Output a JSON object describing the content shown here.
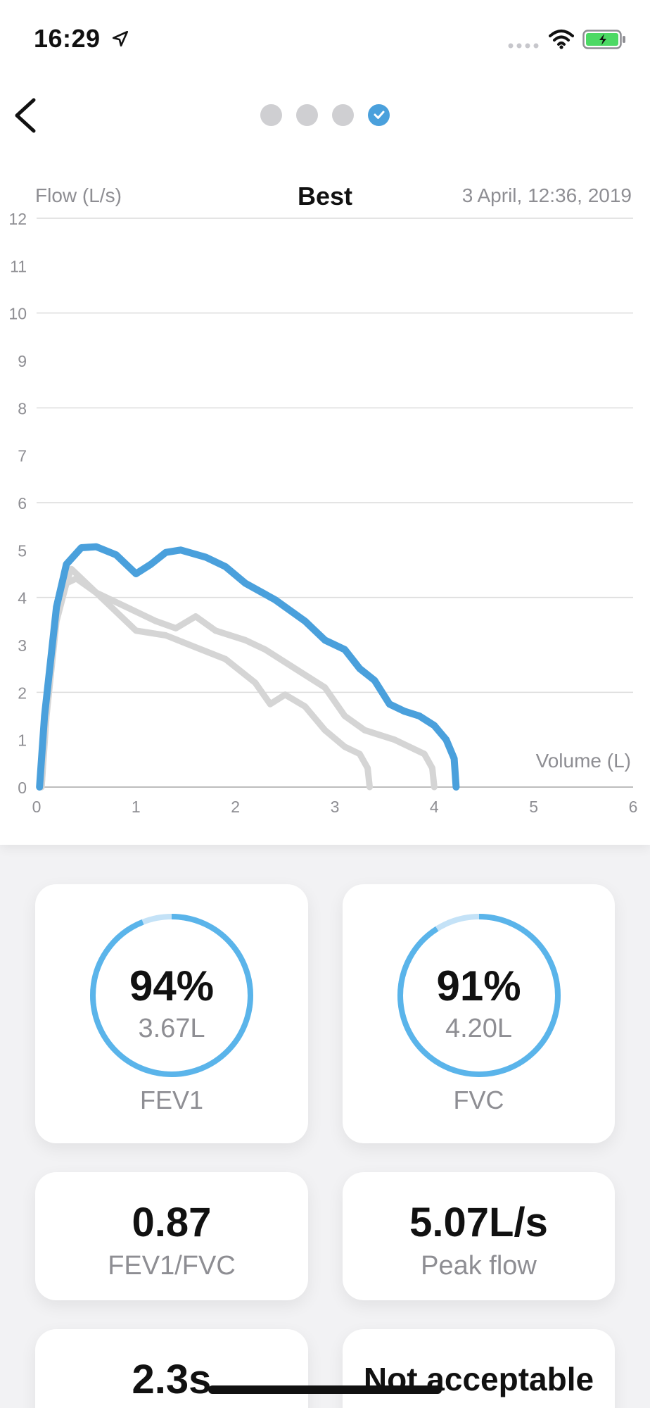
{
  "status_bar": {
    "time": "16:29",
    "icons": [
      "location-arrow-icon",
      "cellular-signal-icon",
      "wifi-icon",
      "battery-charging-icon"
    ],
    "battery_color": "#4cd964"
  },
  "nav": {
    "back_icon": "chevron-left-icon",
    "steps": [
      {
        "state": "pending"
      },
      {
        "state": "pending"
      },
      {
        "state": "pending"
      },
      {
        "state": "done",
        "icon": "checkmark-icon"
      }
    ]
  },
  "chart_header": {
    "y_label": "Flow (L/s)",
    "title": "Best",
    "date": "3 April, 12:36, 2019"
  },
  "chart_data": {
    "type": "line",
    "title": "Best",
    "xlabel": "Volume (L)",
    "ylabel": "Flow (L/s)",
    "xlim": [
      0,
      6
    ],
    "ylim": [
      0,
      12
    ],
    "x_ticks": [
      "0",
      "1",
      "2",
      "3",
      "4",
      "5",
      "6"
    ],
    "y_ticks": [
      "0",
      "1",
      "2",
      "3",
      "4",
      "5",
      "6",
      "7",
      "8",
      "9",
      "10",
      "11",
      "12"
    ],
    "grid": true,
    "series": [
      {
        "role": "other-attempt",
        "color": "#d5d5d5",
        "points": [
          [
            0.05,
            0
          ],
          [
            0.1,
            1.5
          ],
          [
            0.2,
            3.5
          ],
          [
            0.3,
            4.3
          ],
          [
            0.4,
            4.4
          ],
          [
            0.6,
            4.1
          ],
          [
            0.9,
            3.8
          ],
          [
            1.2,
            3.5
          ],
          [
            1.4,
            3.35
          ],
          [
            1.6,
            3.6
          ],
          [
            1.8,
            3.3
          ],
          [
            2.1,
            3.1
          ],
          [
            2.3,
            2.9
          ],
          [
            2.6,
            2.5
          ],
          [
            2.9,
            2.1
          ],
          [
            3.1,
            1.5
          ],
          [
            3.3,
            1.2
          ],
          [
            3.6,
            1.0
          ],
          [
            3.9,
            0.7
          ],
          [
            3.98,
            0.4
          ],
          [
            4.0,
            0
          ]
        ]
      },
      {
        "role": "other-attempt",
        "color": "#d5d5d5",
        "points": [
          [
            0.05,
            0
          ],
          [
            0.1,
            1.8
          ],
          [
            0.2,
            3.8
          ],
          [
            0.35,
            4.6
          ],
          [
            0.5,
            4.3
          ],
          [
            0.8,
            3.7
          ],
          [
            1.0,
            3.3
          ],
          [
            1.3,
            3.2
          ],
          [
            1.6,
            2.95
          ],
          [
            1.9,
            2.7
          ],
          [
            2.2,
            2.2
          ],
          [
            2.35,
            1.75
          ],
          [
            2.5,
            1.95
          ],
          [
            2.7,
            1.7
          ],
          [
            2.9,
            1.2
          ],
          [
            3.1,
            0.85
          ],
          [
            3.25,
            0.7
          ],
          [
            3.33,
            0.4
          ],
          [
            3.35,
            0
          ]
        ]
      },
      {
        "role": "best",
        "color": "#4aa0dc",
        "points": [
          [
            0.03,
            0
          ],
          [
            0.08,
            1.5
          ],
          [
            0.2,
            3.8
          ],
          [
            0.3,
            4.7
          ],
          [
            0.45,
            5.05
          ],
          [
            0.6,
            5.07
          ],
          [
            0.8,
            4.9
          ],
          [
            1.0,
            4.5
          ],
          [
            1.15,
            4.7
          ],
          [
            1.3,
            4.95
          ],
          [
            1.45,
            5.0
          ],
          [
            1.7,
            4.85
          ],
          [
            1.9,
            4.65
          ],
          [
            2.1,
            4.3
          ],
          [
            2.4,
            3.95
          ],
          [
            2.7,
            3.5
          ],
          [
            2.9,
            3.1
          ],
          [
            3.1,
            2.9
          ],
          [
            3.25,
            2.5
          ],
          [
            3.4,
            2.25
          ],
          [
            3.55,
            1.75
          ],
          [
            3.7,
            1.6
          ],
          [
            3.85,
            1.5
          ],
          [
            4.0,
            1.3
          ],
          [
            4.12,
            1.0
          ],
          [
            4.2,
            0.6
          ],
          [
            4.22,
            0
          ]
        ]
      }
    ]
  },
  "cards": {
    "fev1": {
      "percent": "94%",
      "value": "3.67L",
      "label": "FEV1",
      "ring_fraction": 0.94
    },
    "fvc": {
      "percent": "91%",
      "value": "4.20L",
      "label": "FVC",
      "ring_fraction": 0.91
    },
    "ratio": {
      "value": "0.87",
      "label": "FEV1/FVC"
    },
    "peak": {
      "value": "5.07L/s",
      "label": "Peak flow"
    },
    "time": {
      "value": "2.3s"
    },
    "quality": {
      "value": "Not acceptable"
    }
  },
  "colors": {
    "accent": "#4aa0dc",
    "ring": "#5ab4ea",
    "ring_track": "#c4e2f7",
    "muted_text": "#8e8e93",
    "gridline": "#dcdcdc"
  }
}
